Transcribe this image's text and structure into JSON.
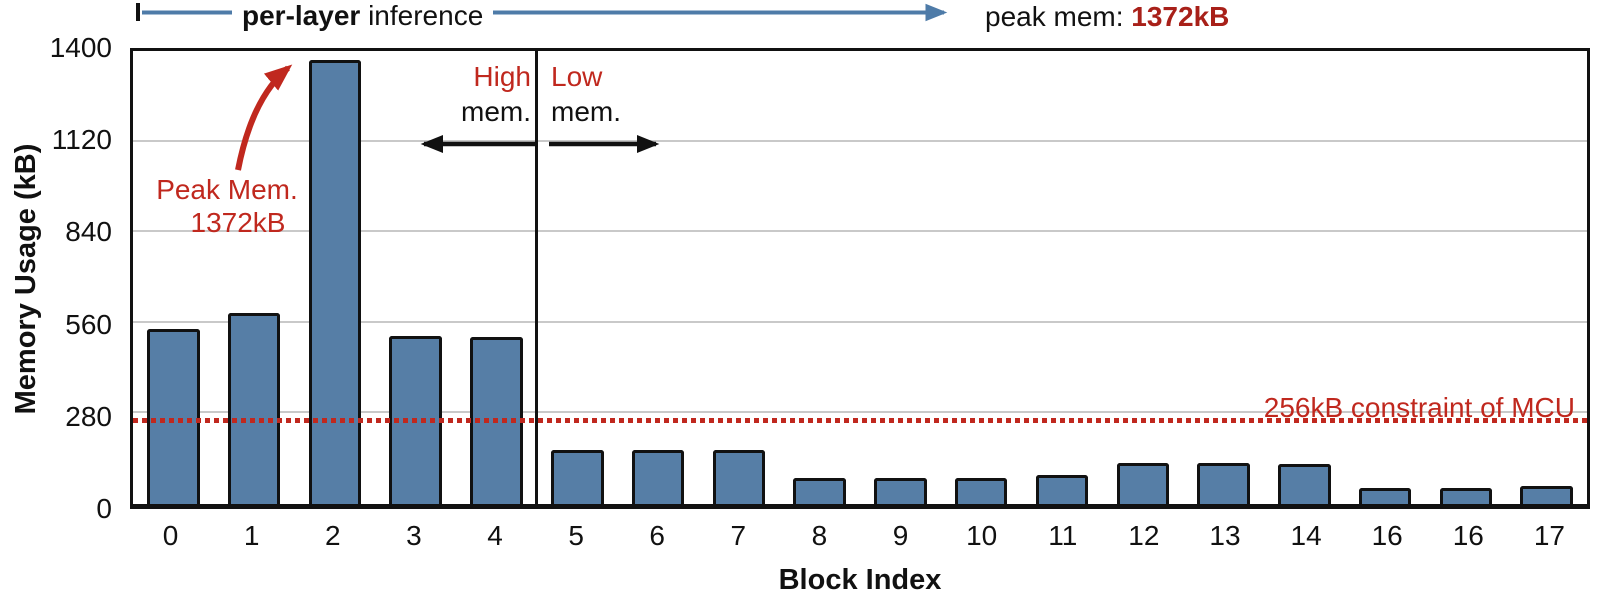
{
  "chart_data": {
    "type": "bar",
    "categories": [
      "0",
      "1",
      "2",
      "3",
      "4",
      "5",
      "6",
      "7",
      "8",
      "9",
      "10",
      "11",
      "12",
      "13",
      "14",
      "16",
      "16",
      "17"
    ],
    "values": [
      540,
      590,
      1372,
      520,
      515,
      168,
      168,
      168,
      80,
      80,
      80,
      90,
      128,
      128,
      124,
      48,
      48,
      57
    ],
    "xlabel": "Block Index",
    "ylabel": "Memory Usage (kB)",
    "ylim": [
      0,
      1400
    ],
    "yticks": [
      0,
      280,
      560,
      840,
      1120,
      1400
    ],
    "grid": true,
    "bar_color": "#567ea6",
    "bar_border": "#111111",
    "divider_after_index": 4,
    "constraint_line": {
      "value_kB": 256,
      "label": "256kB constraint of MCU",
      "color": "#c0281e",
      "style": "dotted"
    }
  },
  "annotations": {
    "top_arrow": {
      "label_bold": "per-layer",
      "label_rest": " inference",
      "color": "#4e7ba8"
    },
    "peak_mem_top": {
      "prefix": "peak mem: ",
      "value": "1372kB"
    },
    "peak_callout": {
      "line1": "Peak Mem.",
      "line2": "1372kB",
      "points_to_category": "2"
    },
    "high_mem": {
      "word1": "High",
      "word2": "mem."
    },
    "low_mem": {
      "word1": "Low",
      "word2": "mem."
    }
  },
  "colors": {
    "red": "#c0281e",
    "dark_red": "#a82019",
    "blue": "#4e7ba8",
    "grid": "#c9c9c9",
    "bar": "#567ea6"
  }
}
